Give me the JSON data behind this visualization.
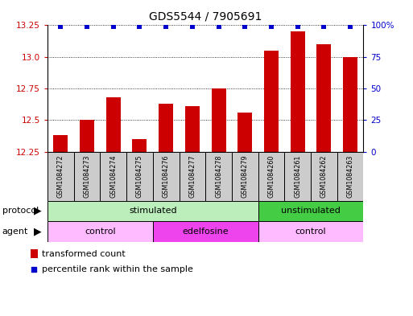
{
  "title": "GDS5544 / 7905691",
  "samples": [
    "GSM1084272",
    "GSM1084273",
    "GSM1084274",
    "GSM1084275",
    "GSM1084276",
    "GSM1084277",
    "GSM1084278",
    "GSM1084279",
    "GSM1084260",
    "GSM1084261",
    "GSM1084262",
    "GSM1084263"
  ],
  "bar_values": [
    12.38,
    12.5,
    12.68,
    12.35,
    12.63,
    12.61,
    12.75,
    12.56,
    13.05,
    13.2,
    13.1,
    13.0
  ],
  "percentile_values": [
    99,
    99,
    99,
    99,
    99,
    99,
    99,
    99,
    99,
    99,
    99,
    99
  ],
  "ylim": [
    12.25,
    13.25
  ],
  "yticks_left": [
    12.25,
    12.5,
    12.75,
    13.0,
    13.25
  ],
  "yticks_right": [
    0,
    25,
    50,
    75,
    100
  ],
  "bar_color": "#cc0000",
  "dot_color": "#0000cc",
  "grid_color": "#000000",
  "sample_bg_color": "#cccccc",
  "protocol_groups": [
    {
      "label": "stimulated",
      "start": 0,
      "end": 8,
      "color": "#bbeebb"
    },
    {
      "label": "unstimulated",
      "start": 8,
      "end": 12,
      "color": "#44cc44"
    }
  ],
  "agent_groups": [
    {
      "label": "control",
      "start": 0,
      "end": 4,
      "color": "#ffbbff"
    },
    {
      "label": "edelfosine",
      "start": 4,
      "end": 8,
      "color": "#ee44ee"
    },
    {
      "label": "control",
      "start": 8,
      "end": 12,
      "color": "#ffbbff"
    }
  ],
  "legend_bar_color": "#cc0000",
  "legend_dot_color": "#0000cc",
  "legend_bar_label": "transformed count",
  "legend_dot_label": "percentile rank within the sample",
  "figsize": [
    5.13,
    3.93
  ],
  "dpi": 100
}
